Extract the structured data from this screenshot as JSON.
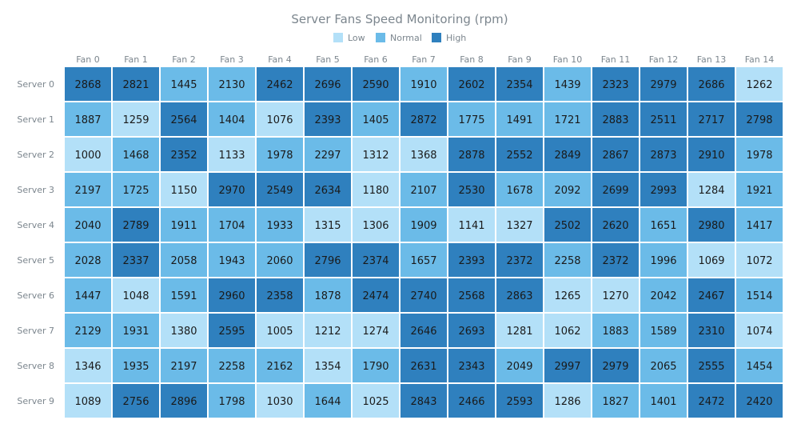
{
  "chart_data": {
    "type": "heatmap",
    "title": "Server Fans Speed Monitoring (rpm)",
    "columns": [
      "Fan 0",
      "Fan 1",
      "Fan 2",
      "Fan 3",
      "Fan 4",
      "Fan 5",
      "Fan 6",
      "Fan 7",
      "Fan 8",
      "Fan 9",
      "Fan 10",
      "Fan 11",
      "Fan 12",
      "Fan 13",
      "Fan 14"
    ],
    "rows": [
      "Server 0",
      "Server 1",
      "Server 2",
      "Server 3",
      "Server 4",
      "Server 5",
      "Server 6",
      "Server 7",
      "Server 8",
      "Server 9"
    ],
    "values": [
      [
        2868,
        2821,
        1445,
        2130,
        2462,
        2696,
        2590,
        1910,
        2602,
        2354,
        1439,
        2323,
        2979,
        2686,
        1262
      ],
      [
        1887,
        1259,
        2564,
        1404,
        1076,
        2393,
        1405,
        2872,
        1775,
        1491,
        1721,
        2883,
        2511,
        2717,
        2798
      ],
      [
        1000,
        1468,
        2352,
        1133,
        1978,
        2297,
        1312,
        1368,
        2878,
        2552,
        2849,
        2867,
        2873,
        2910,
        1978
      ],
      [
        2197,
        1725,
        1150,
        2970,
        2549,
        2634,
        1180,
        2107,
        2530,
        1678,
        2092,
        2699,
        2993,
        1284,
        1921
      ],
      [
        2040,
        2789,
        1911,
        1704,
        1933,
        1315,
        1306,
        1909,
        1141,
        1327,
        2502,
        2620,
        1651,
        2980,
        1417
      ],
      [
        2028,
        2337,
        2058,
        1943,
        2060,
        2796,
        2374,
        1657,
        2393,
        2372,
        2258,
        2372,
        1996,
        1069,
        1072
      ],
      [
        1447,
        1048,
        1591,
        2960,
        2358,
        1878,
        2474,
        2740,
        2568,
        2863,
        1265,
        1270,
        2042,
        2467,
        1514
      ],
      [
        2129,
        1931,
        1380,
        2595,
        1005,
        1212,
        1274,
        2646,
        2693,
        1281,
        1062,
        1883,
        1589,
        2310,
        1074
      ],
      [
        1346,
        1935,
        2197,
        2258,
        2162,
        1354,
        1790,
        2631,
        2343,
        2049,
        2997,
        2979,
        2065,
        2555,
        1454
      ],
      [
        1089,
        2756,
        2896,
        1798,
        1030,
        1644,
        1025,
        2843,
        2466,
        2593,
        1286,
        1827,
        1401,
        2472,
        2420
      ]
    ],
    "categories_color": [
      {
        "name": "Low",
        "color": "#b3e0f8"
      },
      {
        "name": "Normal",
        "color": "#6bbbe8"
      },
      {
        "name": "High",
        "color": "#2f80be"
      }
    ],
    "legend_position": "top-center"
  }
}
